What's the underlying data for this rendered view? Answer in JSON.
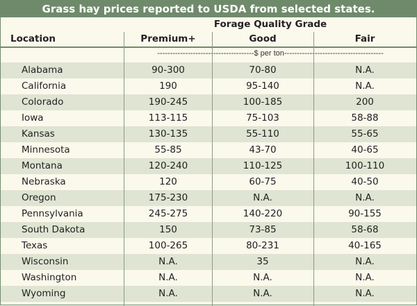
{
  "title": "Grass hay prices reported to USDA from selected states.",
  "header": {
    "grade_title": "Forage Quality Grade",
    "location": "Location",
    "columns": [
      "Premium+",
      "Good",
      "Fair"
    ],
    "unit": "--------------------------------------$ per ton---------------------------------------"
  },
  "rows": [
    {
      "location": "Alabama",
      "premium": "90-300",
      "good": "70-80",
      "fair": "N.A."
    },
    {
      "location": "California",
      "premium": "190",
      "good": "95-140",
      "fair": "N.A."
    },
    {
      "location": "Colorado",
      "premium": "190-245",
      "good": "100-185",
      "fair": "200"
    },
    {
      "location": "Iowa",
      "premium": "113-115",
      "good": "75-103",
      "fair": "58-88"
    },
    {
      "location": "Kansas",
      "premium": "130-135",
      "good": "55-110",
      "fair": "55-65"
    },
    {
      "location": "Minnesota",
      "premium": "55-85",
      "good": "43-70",
      "fair": "40-65"
    },
    {
      "location": "Montana",
      "premium": "120-240",
      "good": "110-125",
      "fair": "100-110"
    },
    {
      "location": "Nebraska",
      "premium": "120",
      "good": "60-75",
      "fair": "40-50"
    },
    {
      "location": "Oregon",
      "premium": "175-230",
      "good": "N.A.",
      "fair": "N.A."
    },
    {
      "location": "Pennsylvania",
      "premium": "245-275",
      "good": "140-220",
      "fair": "90-155"
    },
    {
      "location": "South Dakota",
      "premium": "150",
      "good": "73-85",
      "fair": "58-68"
    },
    {
      "location": "Texas",
      "premium": "100-265",
      "good": "80-231",
      "fair": "40-165"
    },
    {
      "location": "Wisconsin",
      "premium": "N.A.",
      "good": "35",
      "fair": "N.A."
    },
    {
      "location": "Washington",
      "premium": "N.A.",
      "good": "N.A.",
      "fair": "N.A."
    },
    {
      "location": "Wyoming",
      "premium": "N.A.",
      "good": "N.A.",
      "fair": "N.A."
    }
  ]
}
